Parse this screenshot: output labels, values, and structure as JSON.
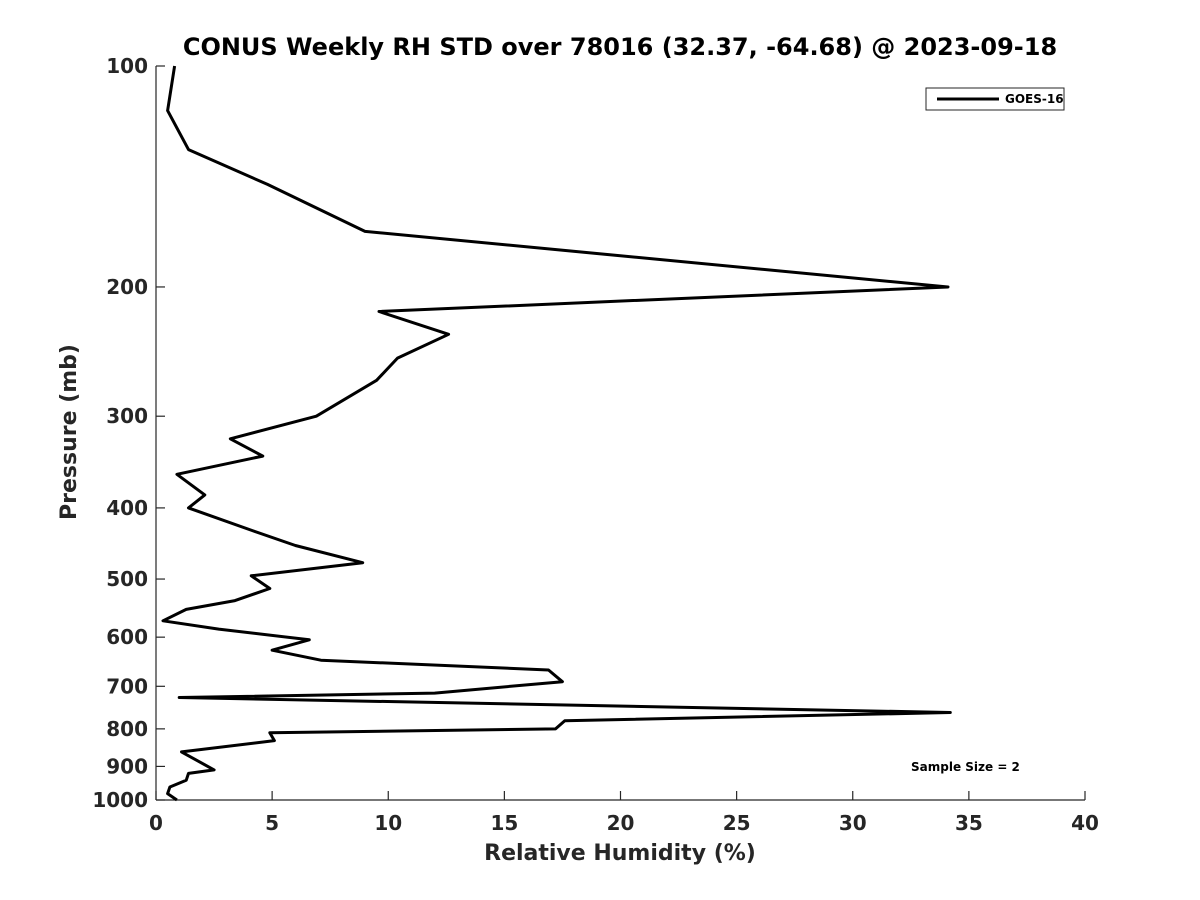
{
  "chart_data": {
    "type": "line",
    "title": "CONUS Weekly RH STD over 78016 (32.37, -64.68) @ 2023-09-18",
    "xlabel": "Relative Humidity (%)",
    "ylabel": "Pressure (mb)",
    "xlim": [
      0,
      40
    ],
    "ylim": [
      100,
      1000
    ],
    "y_scale": "log",
    "y_reversed": true,
    "x_ticks": [
      0,
      5,
      10,
      15,
      20,
      25,
      30,
      35,
      40
    ],
    "y_ticks": [
      100,
      200,
      300,
      400,
      500,
      600,
      700,
      800,
      900,
      1000
    ],
    "grid": false,
    "legend_position": "top-right",
    "series": [
      {
        "name": "GOES-16",
        "color": "#000000",
        "x": [
          0.8,
          0.5,
          1.4,
          4.8,
          9.0,
          34.1,
          9.6,
          12.6,
          10.4,
          9.5,
          6.9,
          3.2,
          4.6,
          0.9,
          2.1,
          1.4,
          4.2,
          6.0,
          8.9,
          4.1,
          4.9,
          3.4,
          1.3,
          0.3,
          2.7,
          6.6,
          5.0,
          7.1,
          16.9,
          17.5,
          12.0,
          1.0,
          34.2,
          17.6,
          17.2,
          4.9,
          5.1,
          1.1,
          2.5,
          1.4,
          1.3,
          0.6,
          0.5,
          0.9
        ],
        "y": [
          100,
          115,
          130,
          145,
          168,
          200,
          216,
          232,
          250,
          268,
          300,
          322,
          340,
          360,
          384,
          400,
          430,
          450,
          475,
          495,
          515,
          535,
          550,
          570,
          585,
          605,
          625,
          645,
          665,
          690,
          715,
          725,
          760,
          780,
          800,
          810,
          830,
          860,
          910,
          920,
          940,
          960,
          980,
          1000
        ]
      }
    ],
    "annotations": [
      "Sample Size = 2"
    ]
  }
}
